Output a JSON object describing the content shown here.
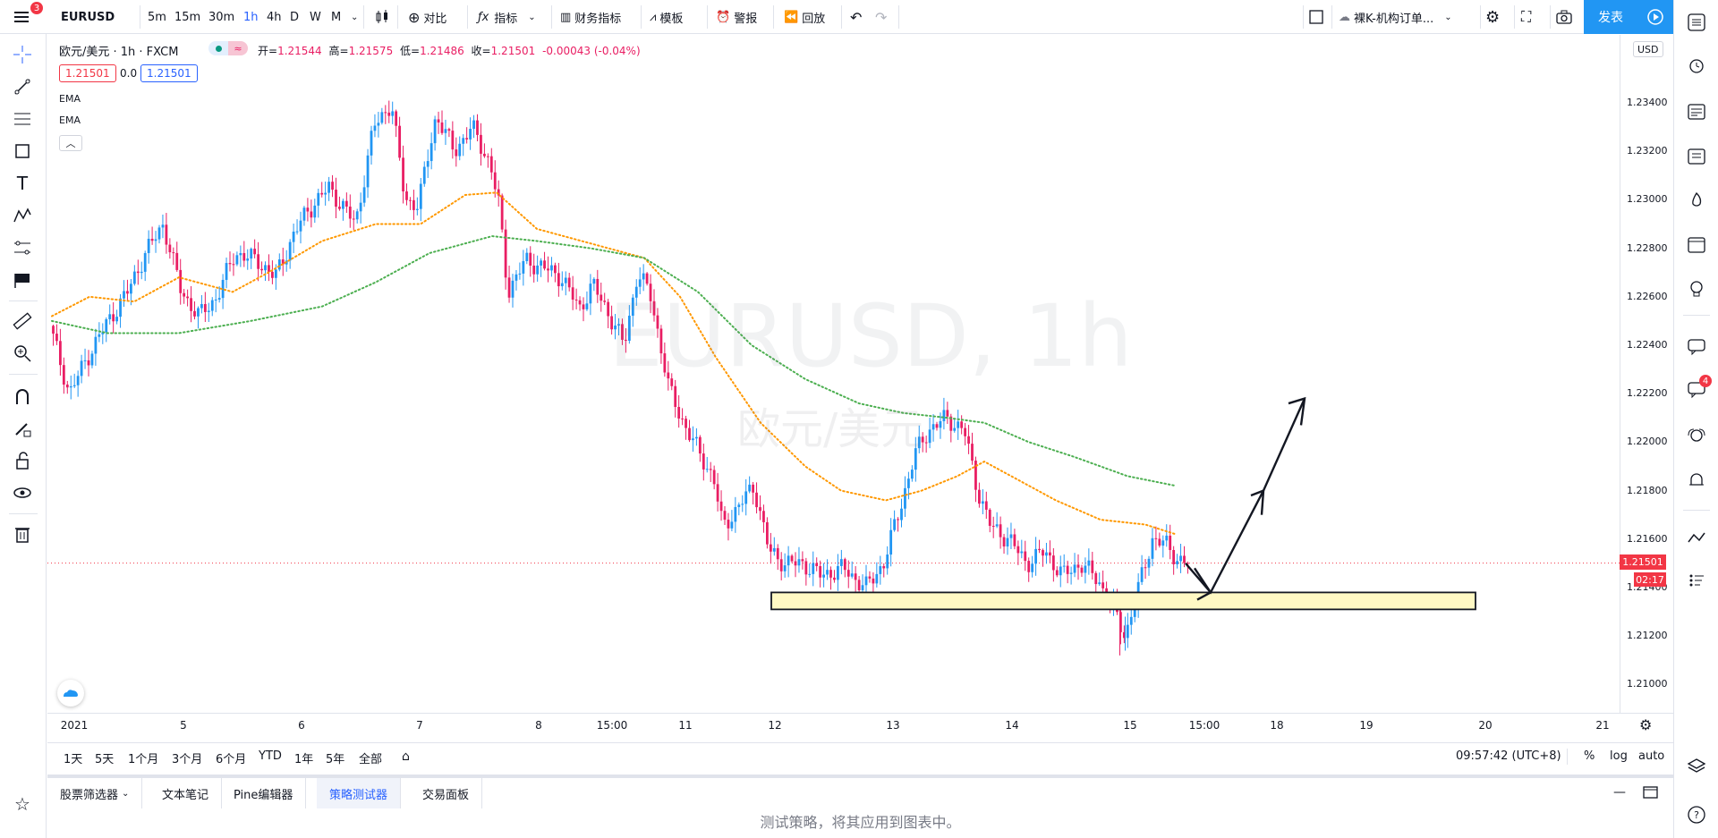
{
  "topbar": {
    "symbol": "EURUSD",
    "menu_badge": "3",
    "timeframes": [
      "5m",
      "15m",
      "30m",
      "1h",
      "4h",
      "D",
      "W",
      "M"
    ],
    "active_timeframe": "1h",
    "compare": "对比",
    "indicators": "指标",
    "financials": "财务指标",
    "templates": "模板",
    "alert": "警报",
    "replay": "回放",
    "layout_name": "裸K-机构订单...",
    "publish": "发表"
  },
  "legend": {
    "title": "欧元/美元 · 1h · FXCM",
    "open_label": "开=",
    "open": "1.21544",
    "high_label": "高=",
    "high": "1.21575",
    "low_label": "低=",
    "low": "1.21486",
    "close_label": "收=",
    "close": "1.21501",
    "change": "-0.00043 (-0.04%)",
    "sell_price": "1.21501",
    "spread": "0.0",
    "buy_price": "1.21501",
    "indicators": [
      "EMA",
      "EMA"
    ]
  },
  "watermark": {
    "symbol": "EURUSD, 1h",
    "name": "欧元/美元"
  },
  "price_axis": {
    "currency": "USD",
    "labels": [
      "1.23400",
      "1.23200",
      "1.23000",
      "1.22800",
      "1.22600",
      "1.22400",
      "1.22200",
      "1.22000",
      "1.21800",
      "1.21600",
      "1.21400",
      "1.21200",
      "1.21000"
    ],
    "current_price": "1.21501",
    "countdown": "02:17"
  },
  "time_axis": {
    "labels": [
      "2021",
      "5",
      "6",
      "7",
      "8",
      "15:00",
      "11",
      "12",
      "13",
      "14",
      "15",
      "15:00",
      "18",
      "19",
      "20",
      "21"
    ]
  },
  "range_bar": {
    "ranges": [
      "1天",
      "5天",
      "1个月",
      "3个月",
      "6个月",
      "YTD",
      "1年",
      "5年",
      "全部"
    ],
    "clock": "09:57:42 (UTC+8)",
    "percent": "%",
    "log": "log",
    "auto": "auto"
  },
  "bottom_panel": {
    "tabs": [
      "股票筛选器",
      "文本笔记",
      "Pine编辑器",
      "策略测试器",
      "交易面板"
    ],
    "active_tab": "策略测试器",
    "message": "测试策略，将其应用到图表中。"
  },
  "right_sidebar": {
    "chat_badge": "4"
  },
  "colors": {
    "up": "#2196f3",
    "down": "#e91e63",
    "ema_fast": "#ff9800",
    "ema_slow": "#4caf50",
    "zone_fill": "#fff9c4",
    "price_line": "#f23645"
  },
  "chart_data": {
    "type": "candlestick",
    "symbol": "EURUSD",
    "timeframe": "1h",
    "ylim": [
      1.209,
      1.2352
    ],
    "series": [
      {
        "name": "EMA",
        "values_approx": [
          1.225,
          1.2268,
          1.2265,
          1.2302,
          1.2283,
          1.226,
          1.2208,
          1.2185,
          1.2196,
          1.219,
          1.217,
          1.2162
        ]
      },
      {
        "name": "EMA",
        "values_approx": [
          1.225,
          1.2245,
          1.2256,
          1.2264,
          1.2285,
          1.228,
          1.2246,
          1.2225,
          1.2211,
          1.22,
          1.219,
          1.2182
        ]
      }
    ],
    "support_zone": [
      1.2131,
      1.2138
    ],
    "current_price": 1.21501
  }
}
